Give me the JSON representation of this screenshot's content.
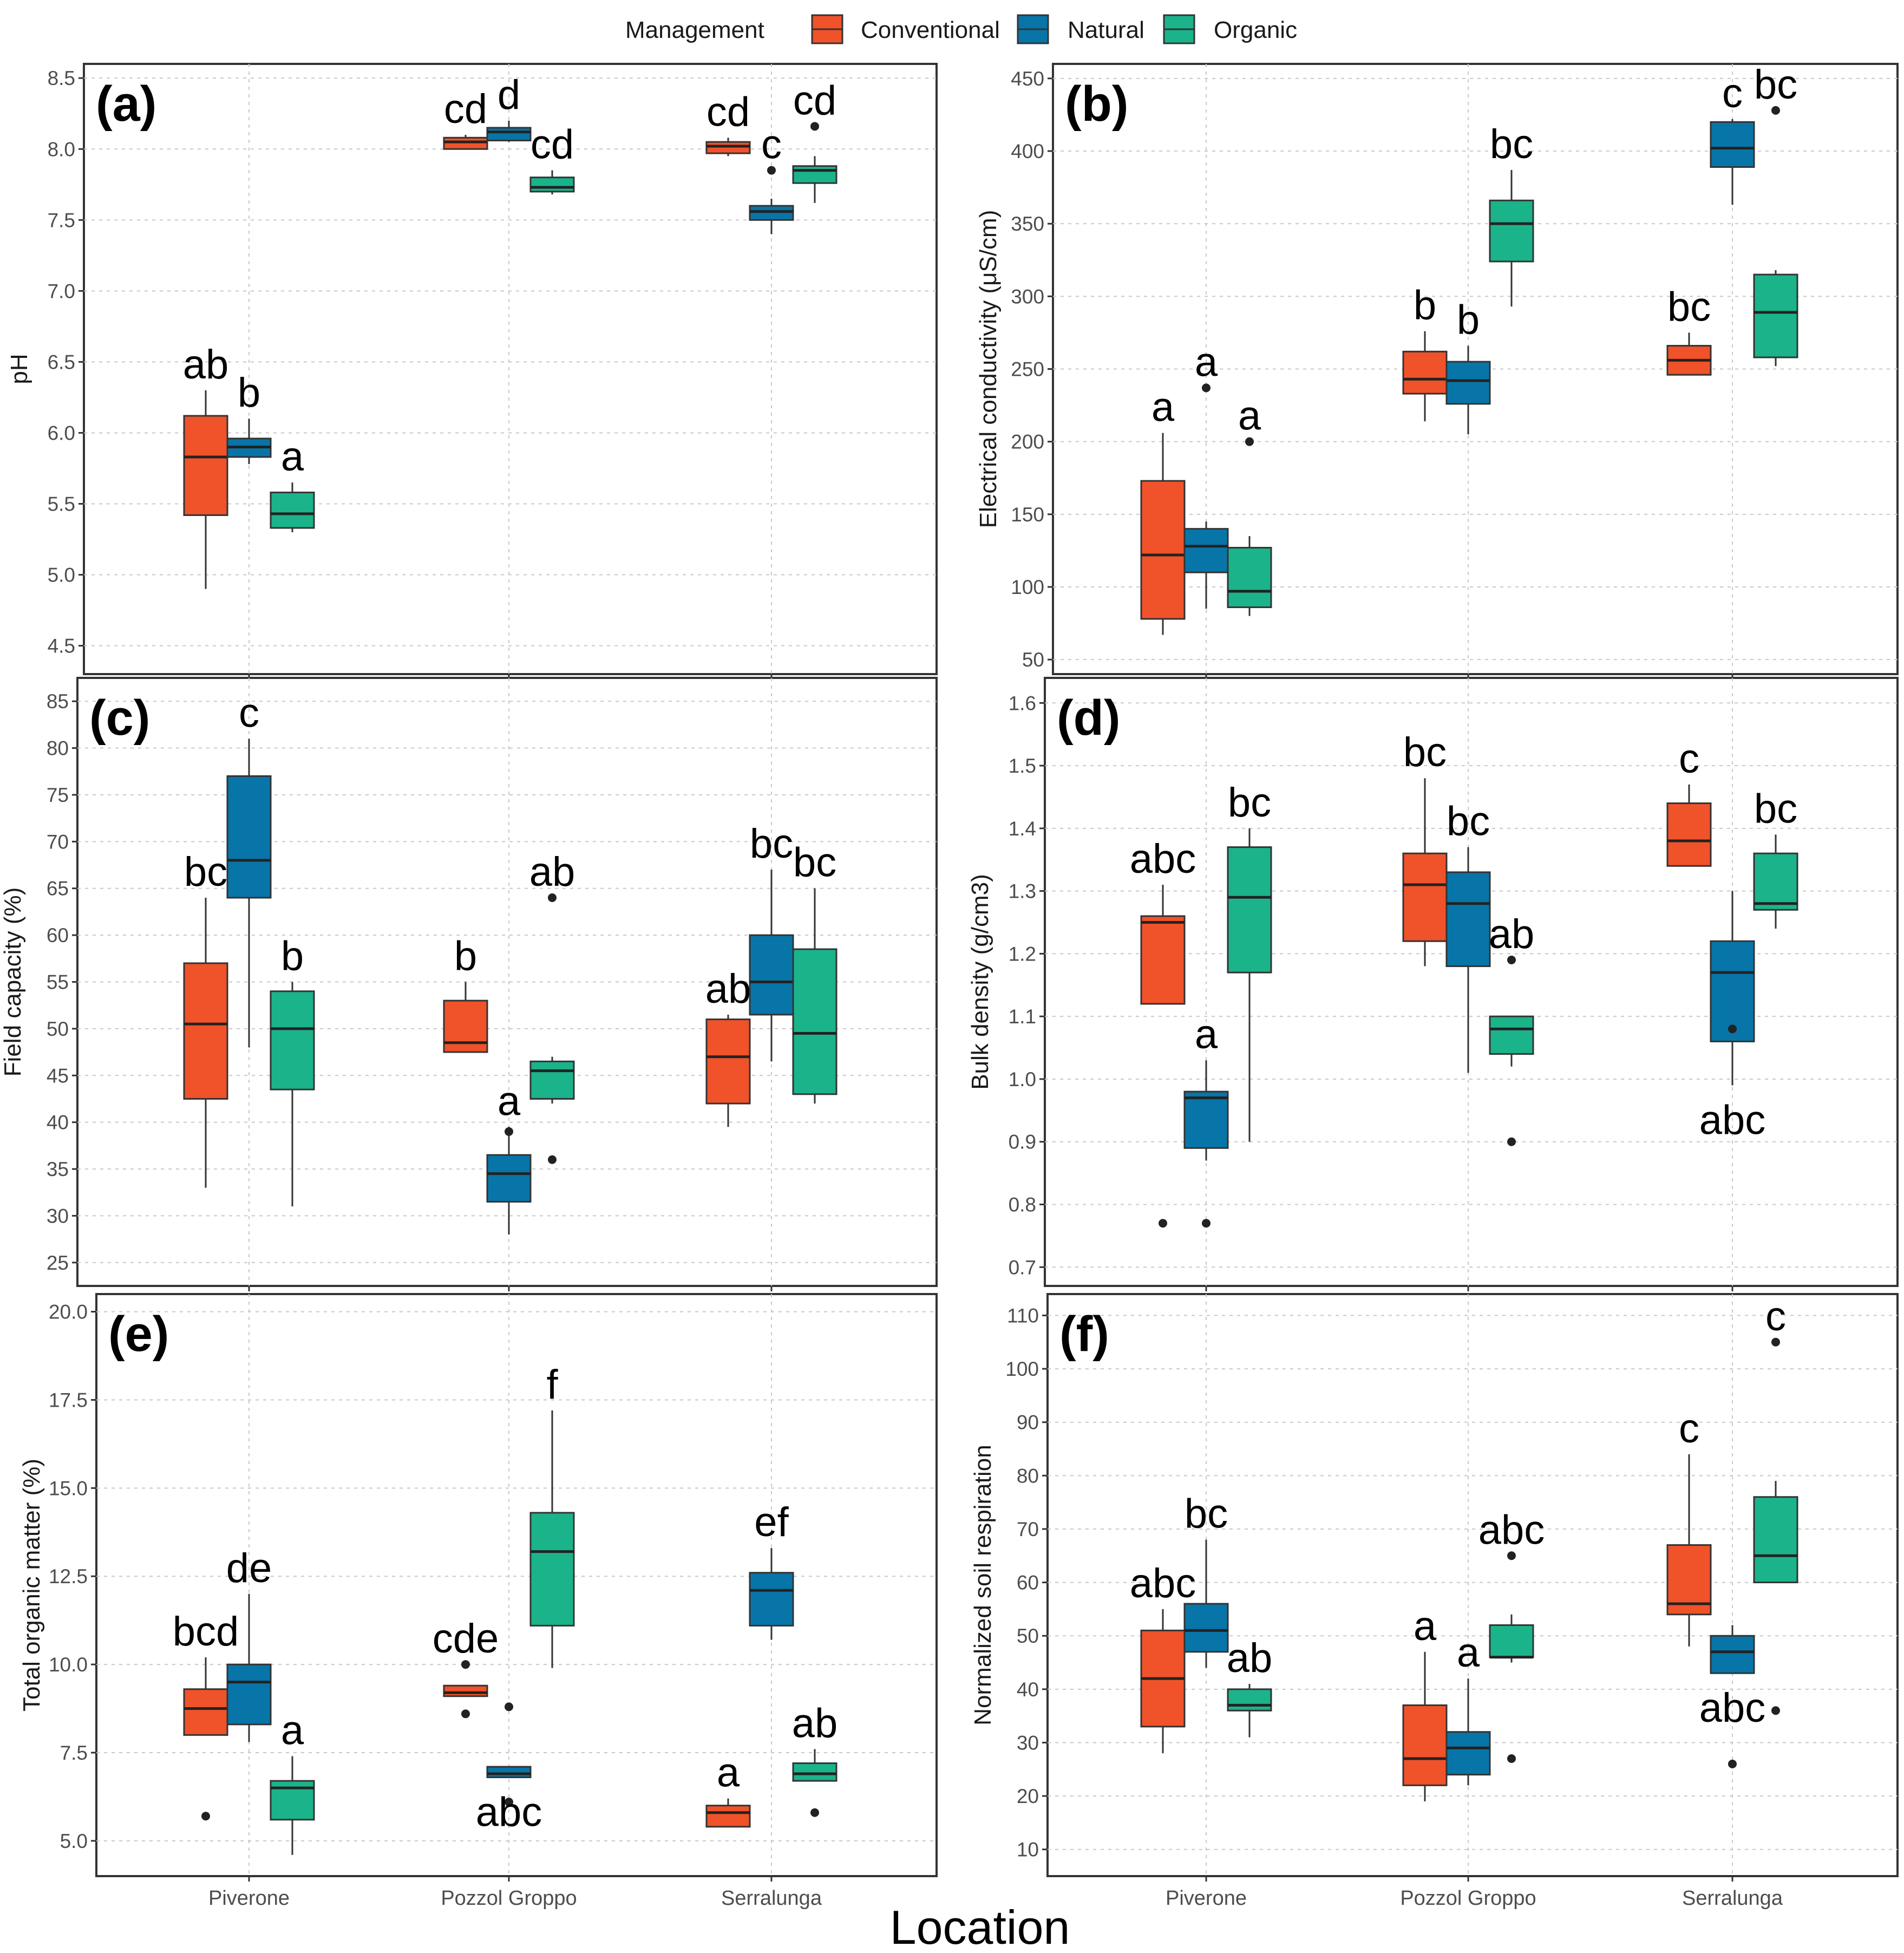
{
  "figure": {
    "legend_title": "Management",
    "x_title": "Location",
    "colors": {
      "Conventional": "#F0522A",
      "Natural": "#0875A8",
      "Organic": "#1BB38A"
    }
  },
  "chart_data": [
    {
      "type": "boxplot",
      "tag": "(a)",
      "ylabel": "pH",
      "categories": [
        "Piverone",
        "Pozzol Groppo",
        "Serralunga"
      ],
      "series": [
        "Conventional",
        "Natural",
        "Organic"
      ],
      "ylim": [
        4.3,
        8.6
      ],
      "yticks": [
        "4.5",
        "5.0",
        "5.5",
        "6.0",
        "6.5",
        "7.0",
        "7.5",
        "8.0",
        "8.5"
      ],
      "boxes": [
        {
          "location": "Piverone",
          "series": "Conventional",
          "lower": 4.9,
          "q1": 5.42,
          "median": 5.83,
          "q3": 6.12,
          "upper": 6.3,
          "outliers": [],
          "letter": "ab"
        },
        {
          "location": "Piverone",
          "series": "Natural",
          "lower": 5.78,
          "q1": 5.83,
          "median": 5.9,
          "q3": 5.96,
          "upper": 6.1,
          "outliers": [],
          "letter": "b"
        },
        {
          "location": "Piverone",
          "series": "Organic",
          "lower": 5.3,
          "q1": 5.33,
          "median": 5.43,
          "q3": 5.58,
          "upper": 5.65,
          "outliers": [],
          "letter": "a"
        },
        {
          "location": "Pozzol Groppo",
          "series": "Conventional",
          "lower": 8.0,
          "q1": 8.0,
          "median": 8.05,
          "q3": 8.08,
          "upper": 8.1,
          "outliers": [],
          "letter": "cd"
        },
        {
          "location": "Pozzol Groppo",
          "series": "Natural",
          "lower": 8.05,
          "q1": 8.06,
          "median": 8.12,
          "q3": 8.15,
          "upper": 8.2,
          "outliers": [],
          "letter": "d"
        },
        {
          "location": "Pozzol Groppo",
          "series": "Organic",
          "lower": 7.68,
          "q1": 7.7,
          "median": 7.73,
          "q3": 7.8,
          "upper": 7.85,
          "outliers": [],
          "letter": "cd"
        },
        {
          "location": "Serralunga",
          "series": "Conventional",
          "lower": 7.95,
          "q1": 7.97,
          "median": 8.02,
          "q3": 8.05,
          "upper": 8.08,
          "outliers": [],
          "letter": "cd"
        },
        {
          "location": "Serralunga",
          "series": "Natural",
          "lower": 7.4,
          "q1": 7.5,
          "median": 7.56,
          "q3": 7.6,
          "upper": 7.65,
          "outliers": [
            7.85
          ],
          "letter": "c"
        },
        {
          "location": "Serralunga",
          "series": "Organic",
          "lower": 7.62,
          "q1": 7.76,
          "median": 7.85,
          "q3": 7.88,
          "upper": 7.95,
          "outliers": [
            8.16
          ],
          "letter": "cd"
        }
      ]
    },
    {
      "type": "boxplot",
      "tag": "(b)",
      "ylabel": "Electrical conductivity (μS/cm)",
      "categories": [
        "Piverone",
        "Pozzol Groppo",
        "Serralunga"
      ],
      "series": [
        "Conventional",
        "Natural",
        "Organic"
      ],
      "ylim": [
        40,
        460
      ],
      "yticks": [
        "50",
        "100",
        "150",
        "200",
        "250",
        "300",
        "350",
        "400",
        "450"
      ],
      "boxes": [
        {
          "location": "Piverone",
          "series": "Conventional",
          "lower": 67,
          "q1": 78,
          "median": 122,
          "q3": 173,
          "upper": 206,
          "outliers": [],
          "letter": "a"
        },
        {
          "location": "Piverone",
          "series": "Natural",
          "lower": 85,
          "q1": 110,
          "median": 128,
          "q3": 140,
          "upper": 145,
          "outliers": [
            237
          ],
          "letter": "a"
        },
        {
          "location": "Piverone",
          "series": "Organic",
          "lower": 80,
          "q1": 86,
          "median": 97,
          "q3": 127,
          "upper": 135,
          "outliers": [
            200
          ],
          "letter": "a"
        },
        {
          "location": "Pozzol Groppo",
          "series": "Conventional",
          "lower": 214,
          "q1": 233,
          "median": 243,
          "q3": 262,
          "upper": 276,
          "outliers": [],
          "letter": "b"
        },
        {
          "location": "Pozzol Groppo",
          "series": "Natural",
          "lower": 205,
          "q1": 226,
          "median": 242,
          "q3": 255,
          "upper": 266,
          "outliers": [],
          "letter": "b"
        },
        {
          "location": "Pozzol Groppo",
          "series": "Organic",
          "lower": 293,
          "q1": 324,
          "median": 350,
          "q3": 366,
          "upper": 387,
          "outliers": [],
          "letter": "bc"
        },
        {
          "location": "Serralunga",
          "series": "Conventional",
          "lower": 246,
          "q1": 246,
          "median": 256,
          "q3": 266,
          "upper": 275,
          "outliers": [],
          "letter": "bc"
        },
        {
          "location": "Serralunga",
          "series": "Natural",
          "lower": 363,
          "q1": 389,
          "median": 402,
          "q3": 420,
          "upper": 422,
          "outliers": [],
          "letter": "c"
        },
        {
          "location": "Serralunga",
          "series": "Organic",
          "lower": 252,
          "q1": 258,
          "median": 289,
          "q3": 315,
          "upper": 318,
          "outliers": [
            428
          ],
          "letter": "bc"
        }
      ]
    },
    {
      "type": "boxplot",
      "tag": "(c)",
      "ylabel": "Field capacity (%)",
      "categories": [
        "Piverone",
        "Pozzol Groppo",
        "Serralunga"
      ],
      "series": [
        "Conventional",
        "Natural",
        "Organic"
      ],
      "ylim": [
        22.5,
        87.5
      ],
      "yticks": [
        "25",
        "30",
        "35",
        "40",
        "45",
        "50",
        "55",
        "60",
        "65",
        "70",
        "75",
        "80",
        "85"
      ],
      "boxes": [
        {
          "location": "Piverone",
          "series": "Conventional",
          "lower": 33,
          "q1": 42.5,
          "median": 50.5,
          "q3": 57,
          "upper": 64,
          "outliers": [],
          "letter": "bc"
        },
        {
          "location": "Piverone",
          "series": "Natural",
          "lower": 48,
          "q1": 64,
          "median": 68,
          "q3": 77,
          "upper": 81,
          "outliers": [],
          "letter": "c"
        },
        {
          "location": "Piverone",
          "series": "Organic",
          "lower": 31,
          "q1": 43.5,
          "median": 50,
          "q3": 54,
          "upper": 55,
          "outliers": [],
          "letter": "b"
        },
        {
          "location": "Pozzol Groppo",
          "series": "Conventional",
          "lower": 47.5,
          "q1": 47.5,
          "median": 48.5,
          "q3": 53,
          "upper": 55,
          "outliers": [],
          "letter": "b"
        },
        {
          "location": "Pozzol Groppo",
          "series": "Natural",
          "lower": 28,
          "q1": 31.5,
          "median": 34.5,
          "q3": 36.5,
          "upper": 39.5,
          "outliers": [
            39
          ],
          "letter": "a"
        },
        {
          "location": "Pozzol Groppo",
          "series": "Organic",
          "lower": 42,
          "q1": 42.5,
          "median": 45.5,
          "q3": 46.5,
          "upper": 47,
          "outliers": [
            64,
            36
          ],
          "letter": "ab"
        },
        {
          "location": "Serralunga",
          "series": "Conventional",
          "lower": 39.5,
          "q1": 42,
          "median": 47,
          "q3": 51,
          "upper": 51.5,
          "outliers": [],
          "letter": "ab"
        },
        {
          "location": "Serralunga",
          "series": "Natural",
          "lower": 46.5,
          "q1": 51.5,
          "median": 55,
          "q3": 60,
          "upper": 67,
          "outliers": [],
          "letter": "bc"
        },
        {
          "location": "Serralunga",
          "series": "Organic",
          "lower": 42,
          "q1": 43,
          "median": 49.5,
          "q3": 58.5,
          "upper": 65,
          "outliers": [],
          "letter": "bc"
        }
      ]
    },
    {
      "type": "boxplot",
      "tag": "(d)",
      "ylabel": "Bulk density (g/cm3)",
      "categories": [
        "Piverone",
        "Pozzol Groppo",
        "Serralunga"
      ],
      "series": [
        "Conventional",
        "Natural",
        "Organic"
      ],
      "ylim": [
        0.67,
        1.64
      ],
      "yticks": [
        "0.7",
        "0.8",
        "0.9",
        "1.0",
        "1.1",
        "1.2",
        "1.3",
        "1.4",
        "1.5",
        "1.6"
      ],
      "boxes": [
        {
          "location": "Piverone",
          "series": "Conventional",
          "lower": 1.12,
          "q1": 1.12,
          "median": 1.25,
          "q3": 1.26,
          "upper": 1.31,
          "outliers": [
            0.77
          ],
          "letter": "abc"
        },
        {
          "location": "Piverone",
          "series": "Natural",
          "lower": 0.87,
          "q1": 0.89,
          "median": 0.97,
          "q3": 0.98,
          "upper": 1.03,
          "outliers": [
            0.77
          ],
          "letter": "a"
        },
        {
          "location": "Piverone",
          "series": "Organic",
          "lower": 0.9,
          "q1": 1.17,
          "median": 1.29,
          "q3": 1.37,
          "upper": 1.4,
          "outliers": [],
          "letter": "bc"
        },
        {
          "location": "Pozzol Groppo",
          "series": "Conventional",
          "lower": 1.18,
          "q1": 1.22,
          "median": 1.31,
          "q3": 1.36,
          "upper": 1.48,
          "outliers": [],
          "letter": "bc"
        },
        {
          "location": "Pozzol Groppo",
          "series": "Natural",
          "lower": 1.01,
          "q1": 1.18,
          "median": 1.28,
          "q3": 1.33,
          "upper": 1.37,
          "outliers": [],
          "letter": "bc"
        },
        {
          "location": "Pozzol Groppo",
          "series": "Organic",
          "lower": 1.02,
          "q1": 1.04,
          "median": 1.08,
          "q3": 1.1,
          "upper": 1.1,
          "outliers": [
            1.19,
            0.9
          ],
          "letter": "ab"
        },
        {
          "location": "Serralunga",
          "series": "Conventional",
          "lower": 1.34,
          "q1": 1.34,
          "median": 1.38,
          "q3": 1.44,
          "upper": 1.47,
          "outliers": [],
          "letter": "c"
        },
        {
          "location": "Serralunga",
          "series": "Natural",
          "lower": 0.99,
          "q1": 1.06,
          "median": 1.17,
          "q3": 1.22,
          "upper": 1.3,
          "outliers": [
            1.08
          ],
          "letter": "abc"
        },
        {
          "location": "Serralunga",
          "series": "Organic",
          "lower": 1.24,
          "q1": 1.27,
          "median": 1.28,
          "q3": 1.36,
          "upper": 1.39,
          "outliers": [],
          "letter": "bc"
        }
      ]
    },
    {
      "type": "boxplot",
      "tag": "(e)",
      "ylabel": "Total organic matter (%)",
      "categories": [
        "Piverone",
        "Pozzol Groppo",
        "Serralunga"
      ],
      "series": [
        "Conventional",
        "Natural",
        "Organic"
      ],
      "ylim": [
        4.0,
        20.5
      ],
      "yticks": [
        "5.0",
        "7.5",
        "10.0",
        "12.5",
        "15.0",
        "17.5",
        "20.0"
      ],
      "boxes": [
        {
          "location": "Piverone",
          "series": "Conventional",
          "lower": 8.0,
          "q1": 8.0,
          "median": 8.75,
          "q3": 9.3,
          "upper": 10.2,
          "outliers": [
            5.7
          ],
          "letter": "bcd"
        },
        {
          "location": "Piverone",
          "series": "Natural",
          "lower": 7.8,
          "q1": 8.3,
          "median": 9.5,
          "q3": 10.0,
          "upper": 12.0,
          "outliers": [],
          "letter": "de"
        },
        {
          "location": "Piverone",
          "series": "Organic",
          "lower": 4.6,
          "q1": 5.6,
          "median": 6.5,
          "q3": 6.7,
          "upper": 7.4,
          "outliers": [],
          "letter": "a"
        },
        {
          "location": "Pozzol Groppo",
          "series": "Conventional",
          "lower": 9.1,
          "q1": 9.1,
          "median": 9.2,
          "q3": 9.4,
          "upper": 9.4,
          "outliers": [
            10.0,
            8.6
          ],
          "letter": "cde"
        },
        {
          "location": "Pozzol Groppo",
          "series": "Natural",
          "lower": 6.8,
          "q1": 6.8,
          "median": 6.9,
          "q3": 7.1,
          "upper": 7.1,
          "outliers": [
            8.8,
            6.1
          ],
          "letter": "abc"
        },
        {
          "location": "Pozzol Groppo",
          "series": "Organic",
          "lower": 9.9,
          "q1": 11.1,
          "median": 13.2,
          "q3": 14.3,
          "upper": 17.2,
          "outliers": [],
          "letter": "f"
        },
        {
          "location": "Serralunga",
          "series": "Conventional",
          "lower": 5.4,
          "q1": 5.4,
          "median": 5.8,
          "q3": 6.0,
          "upper": 6.2,
          "outliers": [],
          "letter": "a"
        },
        {
          "location": "Serralunga",
          "series": "Natural",
          "lower": 10.7,
          "q1": 11.1,
          "median": 12.1,
          "q3": 12.6,
          "upper": 13.3,
          "outliers": [],
          "letter": "ef"
        },
        {
          "location": "Serralunga",
          "series": "Organic",
          "lower": 6.7,
          "q1": 6.7,
          "median": 6.9,
          "q3": 7.2,
          "upper": 7.6,
          "outliers": [
            5.8
          ],
          "letter": "ab"
        }
      ]
    },
    {
      "type": "boxplot",
      "tag": "(f)",
      "ylabel": "Normalized soil respiration",
      "categories": [
        "Piverone",
        "Pozzol Groppo",
        "Serralunga"
      ],
      "series": [
        "Conventional",
        "Natural",
        "Organic"
      ],
      "ylim": [
        5,
        114
      ],
      "yticks": [
        "10",
        "20",
        "30",
        "40",
        "50",
        "60",
        "70",
        "80",
        "90",
        "100",
        "110"
      ],
      "boxes": [
        {
          "location": "Piverone",
          "series": "Conventional",
          "lower": 28,
          "q1": 33,
          "median": 42,
          "q3": 51,
          "upper": 55,
          "outliers": [],
          "letter": "abc"
        },
        {
          "location": "Piverone",
          "series": "Natural",
          "lower": 44,
          "q1": 47,
          "median": 51,
          "q3": 56,
          "upper": 68,
          "outliers": [],
          "letter": "bc"
        },
        {
          "location": "Piverone",
          "series": "Organic",
          "lower": 31,
          "q1": 36,
          "median": 37,
          "q3": 40,
          "upper": 41,
          "outliers": [],
          "letter": "ab"
        },
        {
          "location": "Pozzol Groppo",
          "series": "Conventional",
          "lower": 19,
          "q1": 22,
          "median": 27,
          "q3": 37,
          "upper": 47,
          "outliers": [],
          "letter": "a"
        },
        {
          "location": "Pozzol Groppo",
          "series": "Natural",
          "lower": 22,
          "q1": 24,
          "median": 29,
          "q3": 32,
          "upper": 42,
          "outliers": [],
          "letter": "a"
        },
        {
          "location": "Pozzol Groppo",
          "series": "Organic",
          "lower": 45,
          "q1": 46,
          "median": 46,
          "q3": 52,
          "upper": 54,
          "outliers": [
            65,
            27
          ],
          "letter": "abc"
        },
        {
          "location": "Serralunga",
          "series": "Conventional",
          "lower": 48,
          "q1": 54,
          "median": 56,
          "q3": 67,
          "upper": 84,
          "outliers": [],
          "letter": "c"
        },
        {
          "location": "Serralunga",
          "series": "Natural",
          "lower": 43,
          "q1": 43,
          "median": 47,
          "q3": 50,
          "upper": 52,
          "outliers": [
            26
          ],
          "letter": "abc"
        },
        {
          "location": "Serralunga",
          "series": "Organic",
          "lower": 60,
          "q1": 60,
          "median": 65,
          "q3": 76,
          "upper": 79,
          "outliers": [
            105,
            36
          ],
          "letter": "c"
        }
      ]
    }
  ]
}
